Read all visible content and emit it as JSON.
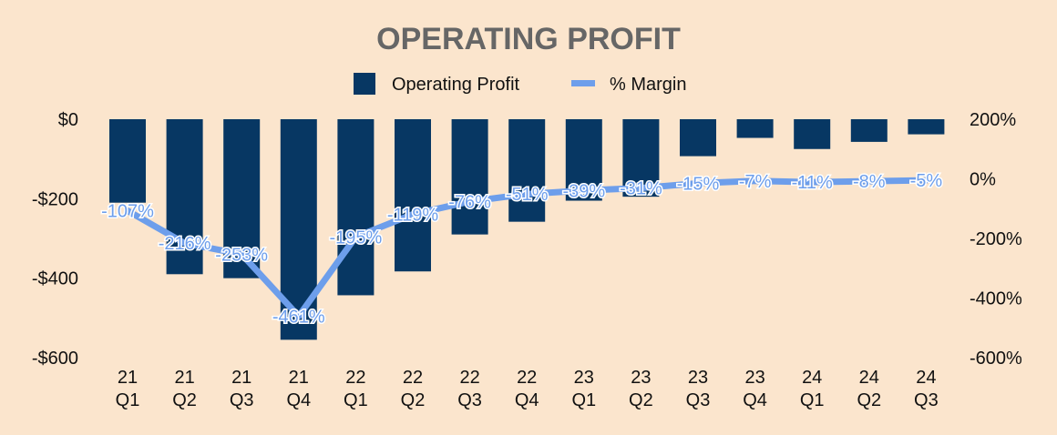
{
  "colors": {
    "background": "#fbe5cd",
    "bar": "#073763",
    "line": "#6d9eeb",
    "title": "#666666"
  },
  "chart_data": {
    "type": "bar",
    "title": "OPERATING PROFIT",
    "legend": {
      "placement": "top-center",
      "entries": [
        "Operating Profit",
        "% Margin"
      ]
    },
    "categories": [
      [
        "21",
        "Q1"
      ],
      [
        "21",
        "Q2"
      ],
      [
        "21",
        "Q3"
      ],
      [
        "21",
        "Q4"
      ],
      [
        "22",
        "Q1"
      ],
      [
        "22",
        "Q2"
      ],
      [
        "22",
        "Q3"
      ],
      [
        "22",
        "Q4"
      ],
      [
        "23",
        "Q1"
      ],
      [
        "23",
        "Q2"
      ],
      [
        "23",
        "Q3"
      ],
      [
        "23",
        "Q4"
      ],
      [
        "24",
        "Q1"
      ],
      [
        "24",
        "Q2"
      ],
      [
        "24",
        "Q3"
      ]
    ],
    "series": [
      {
        "name": "Operating Profit",
        "type": "bar",
        "axis": "left",
        "values": [
          -210,
          -390,
          -400,
          -555,
          -443,
          -383,
          -290,
          -258,
          -205,
          -195,
          -93,
          -47,
          -75,
          -57,
          -38
        ]
      },
      {
        "name": "% Margin",
        "type": "line",
        "axis": "right",
        "values": [
          -107,
          -216,
          -253,
          -461,
          -195,
          -119,
          -76,
          -51,
          -39,
          -31,
          -15,
          -7,
          -11,
          -8,
          -5
        ],
        "labels": [
          "-107%",
          "-216%",
          "-253%",
          "-461%",
          "-195%",
          "-119%",
          "-76%",
          "-51%",
          "-39%",
          "-31%",
          "-15%",
          "-7%",
          "-11%",
          "-8%",
          "-5%"
        ]
      }
    ],
    "y_left": {
      "ylim": [
        -600,
        0
      ],
      "ticks": [
        0,
        -200,
        -400,
        -600
      ],
      "tick_labels": [
        "$0",
        "-$200",
        "-$400",
        "-$600"
      ]
    },
    "y_right": {
      "ylim": [
        -600,
        200
      ],
      "ticks": [
        200,
        0,
        -200,
        -400,
        -600
      ],
      "tick_labels": [
        "200%",
        "0%",
        "-200%",
        "-400%",
        "-600%"
      ]
    },
    "grid": false
  }
}
